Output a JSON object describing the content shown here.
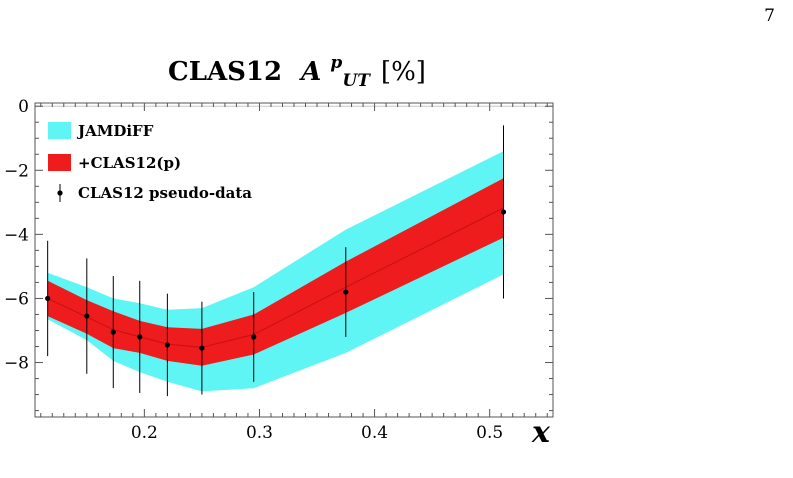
{
  "page": {
    "number": "7"
  },
  "chart_data": {
    "type": "line",
    "title": {
      "prefix": "CLAS12",
      "symbol": "A",
      "superscript": "p",
      "subscript": "UT",
      "suffix": "[%]"
    },
    "xlabel": "x",
    "ylabel": "",
    "xlim": [
      0.105,
      0.555
    ],
    "ylim": [
      -9.7,
      0.1
    ],
    "xticks": [
      0.2,
      0.3,
      0.4,
      0.5
    ],
    "xtick_labels": [
      "0.2",
      "0.3",
      "0.4",
      "0.5"
    ],
    "yticks": [
      0,
      -2,
      -4,
      -6,
      -8
    ],
    "ytick_labels": [
      "0",
      "−2",
      "−4",
      "−6",
      "−8"
    ],
    "grid": false,
    "legend_position": "top-left",
    "zero_line": true,
    "colors": {
      "jamdiff": "#5ff5f5",
      "clas12": "#ee1c1c",
      "data": "#000000"
    },
    "series": [
      {
        "name": "JAMDiFF",
        "kind": "band",
        "x": [
          0.116,
          0.15,
          0.173,
          0.196,
          0.22,
          0.25,
          0.295,
          0.375,
          0.512
        ],
        "lower": [
          -6.65,
          -7.3,
          -7.95,
          -8.3,
          -8.6,
          -8.9,
          -8.8,
          -7.7,
          -5.25
        ],
        "upper": [
          -5.2,
          -5.65,
          -6.0,
          -6.15,
          -6.35,
          -6.3,
          -5.65,
          -3.85,
          -1.4
        ]
      },
      {
        "name": "+CLAS12(p)",
        "kind": "band",
        "x": [
          0.116,
          0.15,
          0.173,
          0.196,
          0.22,
          0.25,
          0.295,
          0.375,
          0.512
        ],
        "lower": [
          -6.55,
          -7.1,
          -7.55,
          -7.7,
          -7.95,
          -8.1,
          -7.75,
          -6.45,
          -4.1
        ],
        "upper": [
          -5.45,
          -6.05,
          -6.4,
          -6.7,
          -6.9,
          -6.95,
          -6.5,
          -4.85,
          -2.25
        ]
      },
      {
        "name": "CLAS12 pseudo-data",
        "kind": "errorbar",
        "x": [
          0.116,
          0.15,
          0.173,
          0.196,
          0.22,
          0.25,
          0.295,
          0.375,
          0.512
        ],
        "y": [
          -6.0,
          -6.55,
          -7.05,
          -7.2,
          -7.45,
          -7.55,
          -7.2,
          -5.8,
          -3.3
        ],
        "err": [
          1.8,
          1.8,
          1.75,
          1.75,
          1.6,
          1.45,
          1.4,
          1.4,
          2.7
        ]
      }
    ]
  }
}
